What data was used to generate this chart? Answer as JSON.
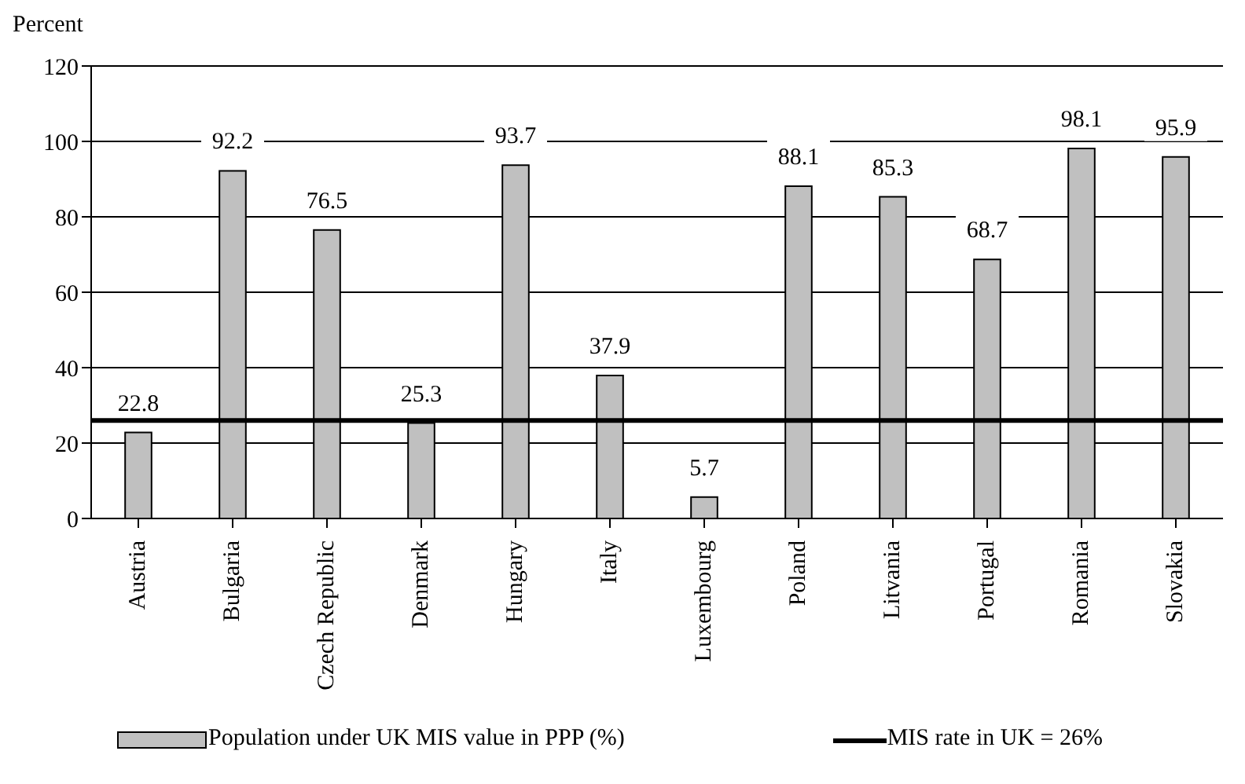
{
  "chart_data": {
    "type": "bar",
    "ylabel": "Percent",
    "categories": [
      "Austria",
      "Bulgaria",
      "Czech Republic",
      "Denmark",
      "Hungary",
      "Italy",
      "Luxembourg",
      "Poland",
      "Litvania",
      "Portugal",
      "Romania",
      "Slovakia"
    ],
    "series": [
      {
        "name": "Population under UK MIS value in PPP (%)",
        "color": "#c0c0c0",
        "values": [
          22.8,
          92.2,
          76.5,
          25.3,
          93.7,
          37.9,
          5.7,
          88.1,
          85.3,
          68.7,
          98.1,
          95.9
        ]
      }
    ],
    "ylim": [
      0,
      120
    ],
    "yticks": [
      0,
      20,
      40,
      60,
      80,
      100,
      120
    ],
    "grid": "y",
    "data_labels": true,
    "legend": "bottom",
    "ref_lines": [
      {
        "axis": "y",
        "value": 26,
        "label": "MIS rate in UK = 26%",
        "color": "#000000"
      }
    ]
  }
}
